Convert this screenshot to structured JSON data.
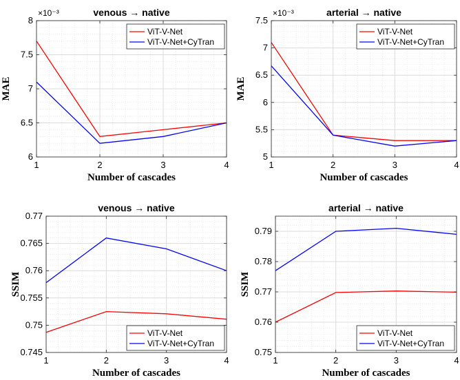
{
  "chart_data": [
    {
      "type": "line",
      "title": "venous → native",
      "xlabel": "Number of cascades",
      "ylabel": "MAE",
      "x": [
        1,
        2,
        3,
        4
      ],
      "xlim": [
        1,
        4
      ],
      "ylim": [
        6,
        8
      ],
      "xticks": [
        "1",
        "2",
        "3",
        "4"
      ],
      "yticks": [
        "6",
        "6.5",
        "7",
        "7.5",
        "8"
      ],
      "yexponent": "×10⁻³",
      "grid": true,
      "legend": "top-right",
      "series": [
        {
          "name": "ViT-V-Net",
          "color": "#ff0000",
          "values": [
            7.7,
            6.3,
            6.4,
            6.5
          ]
        },
        {
          "name": "ViT-V-Net+CyTran",
          "color": "#0000ff",
          "values": [
            7.1,
            6.2,
            6.3,
            6.5
          ]
        }
      ]
    },
    {
      "type": "line",
      "title": "arterial → native",
      "xlabel": "Number of cascades",
      "ylabel": "MAE",
      "x": [
        1,
        2,
        3,
        4
      ],
      "xlim": [
        1,
        4
      ],
      "ylim": [
        5,
        7.5
      ],
      "xticks": [
        "1",
        "2",
        "3",
        "4"
      ],
      "yticks": [
        "5",
        "5.5",
        "6",
        "6.5",
        "7",
        "7.5"
      ],
      "yexponent": "×10⁻³",
      "grid": true,
      "legend": "top-right",
      "series": [
        {
          "name": "ViT-V-Net",
          "color": "#ff0000",
          "values": [
            7.1,
            5.4,
            5.3,
            5.3
          ]
        },
        {
          "name": "ViT-V-Net+CyTran",
          "color": "#0000ff",
          "values": [
            6.67,
            5.4,
            5.2,
            5.3
          ]
        }
      ]
    },
    {
      "type": "line",
      "title": "venous → native",
      "xlabel": "Number of cascades",
      "ylabel": "SSIM",
      "x": [
        1,
        2,
        3,
        4
      ],
      "xlim": [
        1,
        4
      ],
      "ylim": [
        0.745,
        0.77
      ],
      "xticks": [
        "1",
        "2",
        "3",
        "4"
      ],
      "yticks": [
        "0.745",
        "0.75",
        "0.755",
        "0.76",
        "0.765",
        "0.77"
      ],
      "yexponent": "",
      "grid": true,
      "legend": "bottom-right",
      "series": [
        {
          "name": "ViT-V-Net",
          "color": "#ff0000",
          "values": [
            0.7487,
            0.7525,
            0.7521,
            0.7511
          ]
        },
        {
          "name": "ViT-V-Net+CyTran",
          "color": "#0000ff",
          "values": [
            0.7578,
            0.766,
            0.764,
            0.76
          ]
        }
      ]
    },
    {
      "type": "line",
      "title": "arterial → native",
      "xlabel": "Number of cascades",
      "ylabel": "SSIM",
      "x": [
        1,
        2,
        3,
        4
      ],
      "xlim": [
        1,
        4
      ],
      "ylim": [
        0.75,
        0.795
      ],
      "xticks": [
        "1",
        "2",
        "3",
        "4"
      ],
      "yticks": [
        "0.75",
        "0.76",
        "0.77",
        "0.78",
        "0.79"
      ],
      "yexponent": "",
      "grid": true,
      "legend": "bottom-right",
      "series": [
        {
          "name": "ViT-V-Net",
          "color": "#ff0000",
          "values": [
            0.76,
            0.7698,
            0.7703,
            0.7699
          ]
        },
        {
          "name": "ViT-V-Net+CyTran",
          "color": "#0000ff",
          "values": [
            0.777,
            0.79,
            0.791,
            0.789
          ]
        }
      ]
    }
  ]
}
